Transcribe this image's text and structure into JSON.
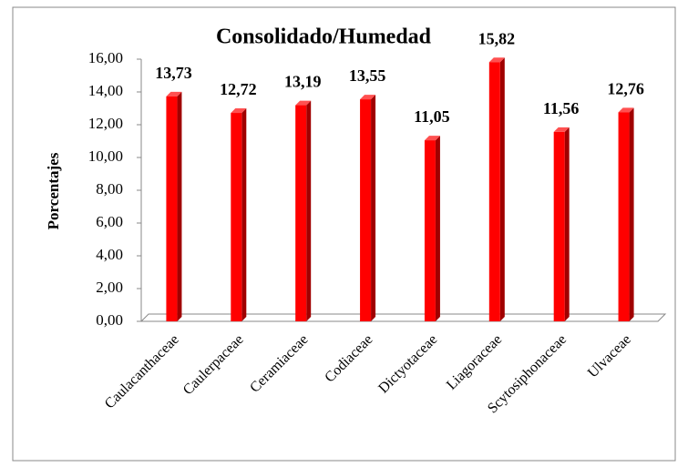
{
  "chart_data": {
    "type": "bar",
    "title": "Consolidado/Humedad",
    "y_label": "Porcentajes",
    "categories": [
      "Caulacanthaceae",
      "Caulerpaceae",
      "Ceramiaceae",
      "Codiaceae",
      "Dictyotaceae",
      "Liagoraceae",
      "Scytosiphonaceae",
      "Ulvaceae"
    ],
    "values": [
      13.73,
      12.72,
      13.19,
      13.55,
      11.05,
      15.82,
      11.56,
      12.76
    ],
    "value_labels": [
      "13,73",
      "12,72",
      "13,19",
      "13,55",
      "11,05",
      "15,82",
      "11,56",
      "12,76"
    ],
    "color": "#ff0000",
    "ylim": [
      0,
      16
    ],
    "yticks": [
      {
        "value": 0,
        "label": "0,00"
      },
      {
        "value": 2,
        "label": "2,00"
      },
      {
        "value": 4,
        "label": "4,00"
      },
      {
        "value": 6,
        "label": "6,00"
      },
      {
        "value": 8,
        "label": "8,00"
      },
      {
        "value": 10,
        "label": "10,00"
      },
      {
        "value": 12,
        "label": "12,00"
      },
      {
        "value": 14,
        "label": "14,00"
      },
      {
        "value": 16,
        "label": "16,00"
      }
    ],
    "grid": false
  }
}
